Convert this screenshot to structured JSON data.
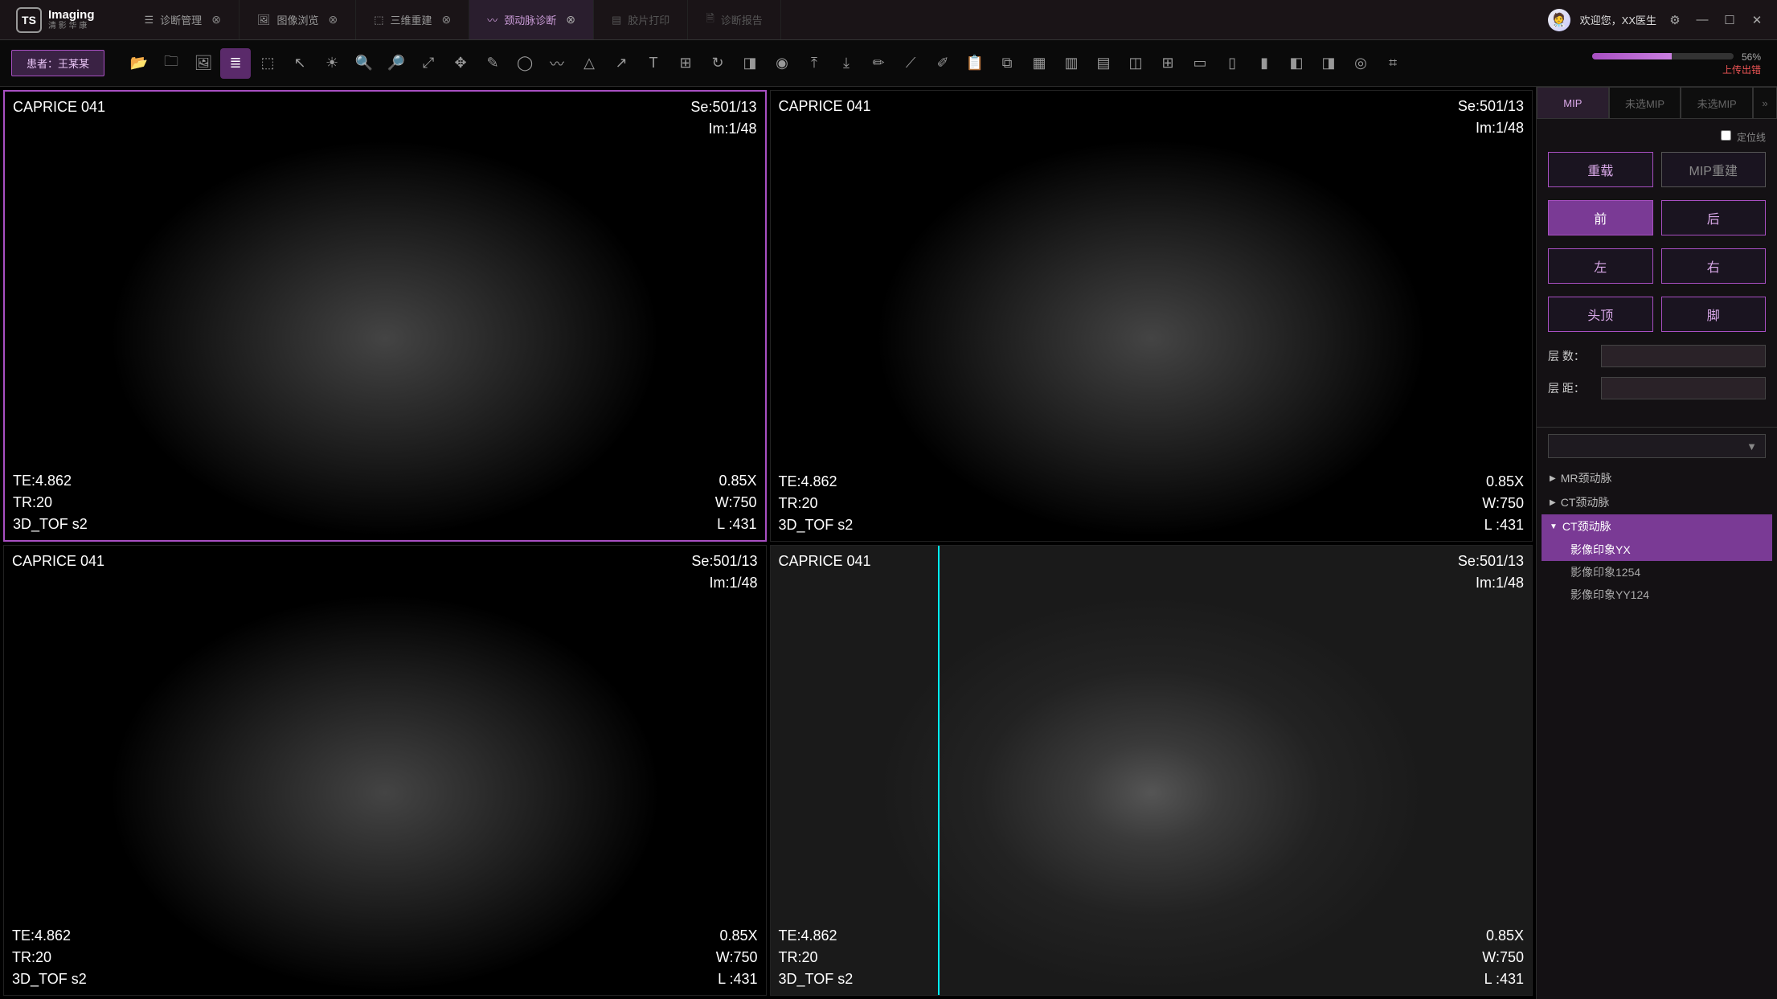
{
  "brand": {
    "logo_initials": "TS",
    "line1": "Imaging",
    "line2": "清 影 华 康"
  },
  "tabs": [
    {
      "icon": "diagnosis",
      "label": "诊断管理",
      "closable": true,
      "state": "normal"
    },
    {
      "icon": "image",
      "label": "图像浏览",
      "closable": true,
      "state": "normal"
    },
    {
      "icon": "cube",
      "label": "三维重建",
      "closable": true,
      "state": "normal"
    },
    {
      "icon": "pulse",
      "label": "颈动脉诊断",
      "closable": true,
      "state": "active"
    },
    {
      "icon": "film",
      "label": "胶片打印",
      "closable": false,
      "state": "disabled"
    },
    {
      "icon": "report",
      "label": "诊断报告",
      "closable": false,
      "state": "disabled"
    }
  ],
  "header": {
    "welcome_prefix": "欢迎您，",
    "user_name": "XX医生",
    "avatar_emoji": "🧑‍⚕️"
  },
  "patient": {
    "label": "患者：王某某"
  },
  "toolbar_icons": [
    "open-folder",
    "add-folder",
    "image",
    "stack",
    "cube-3d",
    "pointer",
    "brightness",
    "zoom",
    "zoom-out",
    "zoom-fit",
    "move",
    "pencil",
    "circle",
    "zigzag",
    "triangle",
    "arrow",
    "text",
    "add-box",
    "rotate",
    "contrast-split",
    "color-wheel",
    "export-up",
    "export-down",
    "pen",
    "ruler",
    "pencil2",
    "clipboard",
    "screenshot",
    "grid-3x3",
    "grid-2x2",
    "grid-2x1",
    "split-v",
    "grid-4",
    "layout-1",
    "layout-2",
    "layout-3",
    "layout-4",
    "layout-5",
    "target",
    "net"
  ],
  "toolbar_active_index": 3,
  "progress": {
    "percent_text": "56%",
    "percent_value": 56,
    "error_text": "上传出错"
  },
  "viewports": {
    "common": {
      "patient_label": "CAPRICE  041",
      "se": "Se:501/13",
      "im": "Im:1/48",
      "te": "TE:4.862",
      "tr": "TR:20",
      "seq": "3D_TOF  s2",
      "zoom": "0.85X",
      "w": "W:750",
      "l": "L :431"
    },
    "selected_index": 0,
    "scanline_viewport": 3
  },
  "side": {
    "tabs": [
      {
        "label": "MIP",
        "state": "active"
      },
      {
        "label": "未选MIP",
        "state": "dim"
      },
      {
        "label": "未选MIP",
        "state": "dim"
      }
    ],
    "show_more": "»",
    "checkbox_label": "定位线",
    "buttons_row1": [
      {
        "label": "重载",
        "variant": "outline-primary"
      },
      {
        "label": "MIP重建",
        "variant": "secondary"
      }
    ],
    "orientation_rows": [
      [
        {
          "label": "前",
          "variant": "primary"
        },
        {
          "label": "后",
          "variant": "outline"
        }
      ],
      [
        {
          "label": "左",
          "variant": "outline"
        },
        {
          "label": "右",
          "variant": "outline"
        }
      ],
      [
        {
          "label": "头顶",
          "variant": "outline"
        },
        {
          "label": "脚",
          "variant": "outline"
        }
      ]
    ],
    "fields": [
      {
        "label": "层 数：",
        "value": ""
      },
      {
        "label": "层 距：",
        "value": ""
      }
    ],
    "combo_placeholder": "▼",
    "tree": [
      {
        "label": "MR颈动脉",
        "expanded": false,
        "children": []
      },
      {
        "label": "CT颈动脉",
        "expanded": false,
        "children": []
      },
      {
        "label": "CT颈动脉",
        "expanded": true,
        "selected_group": true,
        "children": [
          {
            "label": "影像印象YX",
            "selected": true
          },
          {
            "label": "影像印象1254",
            "selected": false
          },
          {
            "label": "影像印象YY124",
            "selected": false
          }
        ]
      }
    ]
  },
  "colors": {
    "accent": "#a84fc2",
    "accent_light": "#d9a8e8",
    "bg": "#0a0a0a",
    "panel": "#141114",
    "error": "#e55"
  }
}
